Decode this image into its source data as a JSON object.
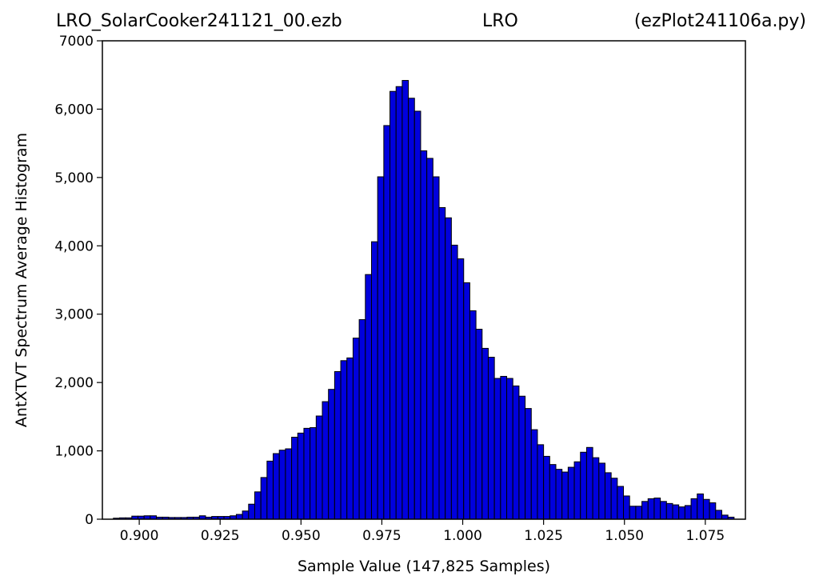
{
  "title": {
    "left": "LRO_SolarCooker241121_00.ezb",
    "center": "LRO",
    "right": "(ezPlot241106a.py)"
  },
  "chart_data": {
    "type": "bar",
    "title": "LRO_SolarCooker241121_00.ezb LRO (ezPlot241106a.py)",
    "xlabel": "Sample Value (147,825 Samples)",
    "ylabel": "AntXTVT Spectrum Average Histogram",
    "xlim": [
      0.8886,
      1.0874
    ],
    "ylim": [
      0,
      7000
    ],
    "bin_start": 0.892,
    "bin_width": 0.0019,
    "bar_color": "#0000dd",
    "edge_color": "#000000",
    "grid": false,
    "xticks": [
      0.9,
      0.925,
      0.95,
      0.975,
      1.0,
      1.025,
      1.05,
      1.075
    ],
    "xtick_labels": [
      "0.900",
      "0.925",
      "0.950",
      "0.975",
      "1.000",
      "1.025",
      "1.050",
      "1.075"
    ],
    "yticks": [
      0,
      1000,
      2000,
      3000,
      4000,
      5000,
      6000,
      7000
    ],
    "ytick_labels": [
      "0",
      "1,000",
      "2,000",
      "3,000",
      "4,000",
      "5,000",
      "6,000",
      "7000"
    ],
    "values": [
      15,
      20,
      20,
      45,
      45,
      50,
      50,
      30,
      30,
      25,
      25,
      25,
      30,
      30,
      50,
      30,
      40,
      40,
      40,
      50,
      70,
      120,
      220,
      400,
      610,
      850,
      960,
      1010,
      1030,
      1200,
      1260,
      1330,
      1340,
      1510,
      1720,
      1900,
      2160,
      2320,
      2360,
      2650,
      2920,
      3580,
      4060,
      5010,
      5760,
      6260,
      6330,
      6420,
      6160,
      5970,
      5390,
      5280,
      5010,
      4560,
      4410,
      4010,
      3810,
      3460,
      3050,
      2780,
      2500,
      2370,
      2060,
      2090,
      2060,
      1950,
      1800,
      1620,
      1310,
      1090,
      920,
      800,
      730,
      690,
      760,
      840,
      980,
      1050,
      900,
      820,
      680,
      600,
      480,
      340,
      190,
      190,
      260,
      300,
      310,
      260,
      230,
      210,
      180,
      200,
      300,
      370,
      290,
      240,
      130,
      60,
      30
    ]
  }
}
